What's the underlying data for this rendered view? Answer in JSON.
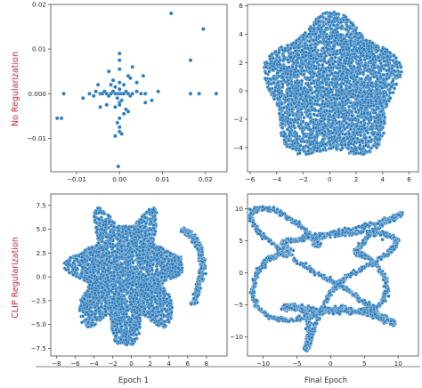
{
  "figure": {
    "row_labels": [
      "No Regularization",
      "CLIP Regularization"
    ],
    "column_labels": [
      "Epoch 1",
      "Final Epoch"
    ],
    "colors": {
      "point_fill": "#2b7bba",
      "point_edge": "#d6e6f2",
      "row_label": "#c8283c",
      "axis": "#444444"
    }
  },
  "chart_data": [
    {
      "type": "scatter",
      "panel": "No Regularization / Epoch 1",
      "xlim": [
        -0.016,
        0.025
      ],
      "ylim": [
        -0.0175,
        0.02
      ],
      "xticks": [
        -0.01,
        0.0,
        0.01,
        0.02
      ],
      "xtick_labels": [
        "−0.01",
        "0.00",
        "0.01",
        "0.02"
      ],
      "yticks": [
        -0.01,
        0.0,
        0.01,
        0.02
      ],
      "ytick_labels": [
        "−0.01",
        "0.000",
        "0.01",
        "0.02"
      ],
      "x": [
        -0.0135,
        -0.013,
        -0.0085,
        -0.007,
        -0.006,
        -0.0055,
        -0.0045,
        -0.004,
        -0.0035,
        -0.003,
        -0.0025,
        -0.002,
        -0.0015,
        -0.001,
        -0.0005,
        0.0,
        0.0005,
        0.001,
        0.0015,
        0.002,
        0.0025,
        0.003,
        0.004,
        0.005,
        0.006,
        0.0075,
        0.009,
        0.0165,
        0.0185,
        0.0225,
        0.012,
        0.0165,
        0.0195,
        0.0,
        -0.001,
        0.001,
        0.0,
        -0.0015,
        0.002,
        -0.0025,
        0.003,
        -0.0005,
        0.0005,
        0.0,
        0.0,
        -0.001,
        0.0015,
        0.001,
        0.0,
        -0.0005,
        0.0,
        0.0005,
        0.0,
        -0.001,
        0.0,
        0.0,
        -0.002,
        0.004,
        -0.003,
        0.002,
        0.006,
        -0.005,
        0.0025,
        -0.0045,
        0.0055,
        0.0,
        -0.0145,
        -0.0003
      ],
      "y": [
        -0.0055,
        0.0,
        -0.001,
        0.0,
        -0.0005,
        0.0005,
        0.0,
        0.0,
        0.0005,
        0.0,
        -0.0005,
        0.0,
        0.0005,
        0.0,
        0.0,
        0.0,
        0.0,
        0.0,
        0.0005,
        0.0,
        -0.0005,
        0.0,
        0.0005,
        0.0,
        0.0,
        -0.0015,
        0.0005,
        0.0,
        0.0,
        0.0,
        0.018,
        0.0075,
        0.0145,
        0.001,
        0.0015,
        0.002,
        0.0025,
        0.003,
        0.004,
        0.005,
        0.006,
        -0.001,
        -0.0015,
        -0.002,
        -0.0025,
        -0.003,
        -0.0035,
        -0.0045,
        -0.0055,
        -0.0065,
        -0.0075,
        -0.009,
        -0.0085,
        -0.0095,
        0.0075,
        0.009,
        0.002,
        0.0025,
        -0.0025,
        -0.004,
        -0.002,
        0.002,
        0.0035,
        -0.003,
        0.004,
        0.0055,
        -0.0055,
        -0.0163
      ],
      "xlabel": "",
      "ylabel": ""
    },
    {
      "type": "scatter",
      "panel": "No Regularization / Final Epoch",
      "xlim": [
        -6.2,
        6.7
      ],
      "ylim": [
        -5.7,
        6.1
      ],
      "xticks": [
        -6,
        -4,
        -2,
        0,
        2,
        4,
        6
      ],
      "xtick_labels": [
        "−6",
        "−4",
        "−2",
        "0",
        "2",
        "4",
        "6"
      ],
      "yticks": [
        -4,
        -2,
        0,
        2,
        4,
        6
      ],
      "ytick_labels": [
        "−4",
        "−2",
        "0",
        "2",
        "4",
        "6"
      ],
      "shape": "dense disk",
      "center": [
        0.2,
        0.2
      ],
      "radius": [
        5.4,
        5.4
      ],
      "point_count": 3600,
      "xlabel": "",
      "ylabel": ""
    },
    {
      "type": "scatter",
      "panel": "CLIP Regularization / Epoch 1",
      "xlim": [
        -8.6,
        10.2
      ],
      "ylim": [
        -8.3,
        8.7
      ],
      "xticks": [
        -8,
        -6,
        -4,
        -2,
        0,
        2,
        4,
        6,
        8
      ],
      "xtick_labels": [
        "−8",
        "−6",
        "−4",
        "−2",
        "0",
        "2",
        "4",
        "6",
        "8"
      ],
      "yticks": [
        -7.5,
        -5.0,
        -2.5,
        0.0,
        2.5,
        5.0,
        7.5
      ],
      "ytick_labels": [
        "−7.5",
        "−5.0",
        "−2.5",
        "0.0",
        "2.5",
        "5.0",
        "7.5"
      ],
      "shape": "dense blob with curved tail",
      "center": [
        -0.6,
        0.0
      ],
      "radius": [
        7.2,
        7.6
      ],
      "tail": {
        "from": [
          5.5,
          5.0
        ],
        "through": [
          9.0,
          3.0
        ],
        "to": [
          6.5,
          -3.0
        ]
      },
      "point_count": 3600,
      "xlabel": "",
      "ylabel": ""
    },
    {
      "type": "scatter",
      "panel": "CLIP Regularization / Final Epoch",
      "xlim": [
        -12.3,
        13.0
      ],
      "ylim": [
        -13.0,
        12.3
      ],
      "xticks": [
        -10,
        -5,
        0,
        5,
        10
      ],
      "xtick_labels": [
        "−10",
        "−5",
        "0",
        "5",
        "10"
      ],
      "yticks": [
        -10,
        -5,
        0,
        5,
        10
      ],
      "ytick_labels": [
        "−10",
        "−5",
        "0",
        "5",
        "10"
      ],
      "shape": "tangled closed loops",
      "center": [
        0.0,
        -0.5
      ],
      "radius": [
        11.0,
        11.0
      ],
      "point_count": 2600,
      "xlabel": "",
      "ylabel": ""
    }
  ]
}
